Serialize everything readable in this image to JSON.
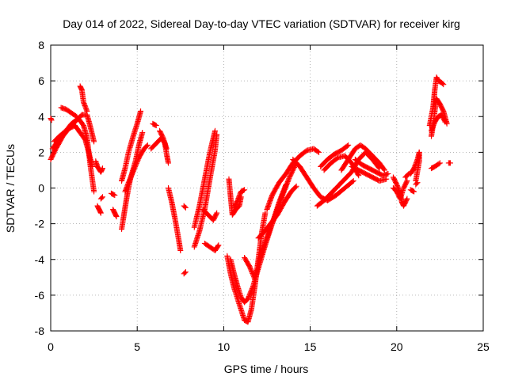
{
  "chart_data": {
    "type": "scatter",
    "title": "Day 014 of 2022, Sidereal Day-to-day VTEC variation (SDTVAR) for receiver kirg",
    "xlabel": "GPS time / hours",
    "ylabel": "SDTVAR / TECUs",
    "xlim": [
      0,
      25
    ],
    "ylim": [
      -8,
      8
    ],
    "xticks": [
      0,
      5,
      10,
      15,
      20,
      25
    ],
    "yticks": [
      -8,
      -6,
      -4,
      -2,
      0,
      2,
      4,
      6,
      8
    ],
    "grid": true,
    "marker": "plus",
    "color": "#ff0000",
    "series": [
      {
        "tracks": [
          [
            [
              0.0,
              3.9
            ],
            [
              0.05,
              3.8
            ]
          ],
          [
            [
              0.0,
              1.6
            ],
            [
              0.3,
              2.2
            ],
            [
              0.7,
              2.9
            ],
            [
              1.1,
              3.4
            ],
            [
              1.5,
              3.8
            ],
            [
              1.8,
              4.1
            ],
            [
              2.1,
              4.1
            ],
            [
              2.3,
              3.4
            ],
            [
              2.5,
              2.6
            ]
          ],
          [
            [
              0.1,
              2.2
            ],
            [
              0.4,
              2.6
            ],
            [
              0.8,
              3.1
            ],
            [
              1.2,
              3.6
            ],
            [
              1.6,
              3.9
            ],
            [
              1.9,
              3.5
            ],
            [
              2.1,
              2.8
            ],
            [
              2.3,
              1.2
            ],
            [
              2.5,
              -0.2
            ]
          ],
          [
            [
              0.2,
              2.6
            ],
            [
              0.5,
              2.9
            ],
            [
              1.0,
              3.3
            ],
            [
              1.4,
              3.5
            ],
            [
              1.7,
              3.1
            ],
            [
              2.0,
              2.7
            ],
            [
              2.2,
              2.0
            ],
            [
              2.4,
              1.2
            ]
          ],
          [
            [
              0.6,
              4.5
            ],
            [
              0.9,
              4.4
            ],
            [
              1.2,
              4.2
            ],
            [
              1.5,
              4.0
            ]
          ],
          [
            [
              1.7,
              5.7
            ],
            [
              1.8,
              5.5
            ],
            [
              1.9,
              4.8
            ],
            [
              2.1,
              4.3
            ]
          ],
          [
            [
              2.6,
              1.5
            ],
            [
              2.7,
              1.2
            ],
            [
              2.9,
              0.9
            ],
            [
              3.0,
              1.1
            ]
          ],
          [
            [
              2.7,
              -1.0
            ],
            [
              2.8,
              -1.2
            ],
            [
              2.9,
              -1.4
            ]
          ],
          [
            [
              2.9,
              -0.6
            ],
            [
              3.0,
              -0.5
            ]
          ],
          [
            [
              3.5,
              -0.3
            ],
            [
              3.7,
              -0.4
            ]
          ],
          [
            [
              3.6,
              -1.2
            ],
            [
              3.7,
              -1.4
            ],
            [
              3.8,
              -1.6
            ]
          ],
          [
            [
              4.1,
              0.4
            ],
            [
              4.3,
              1.1
            ],
            [
              4.5,
              2.0
            ],
            [
              4.8,
              3.0
            ],
            [
              5.0,
              3.6
            ],
            [
              5.2,
              4.3
            ]
          ],
          [
            [
              4.1,
              -2.3
            ],
            [
              4.2,
              -1.7
            ],
            [
              4.4,
              -0.5
            ],
            [
              4.6,
              0.5
            ],
            [
              4.9,
              1.5
            ],
            [
              5.1,
              2.4
            ],
            [
              5.3,
              3.1
            ]
          ],
          [
            [
              4.3,
              -0.2
            ],
            [
              4.5,
              0.3
            ],
            [
              4.8,
              1.0
            ],
            [
              5.1,
              1.7
            ],
            [
              5.4,
              2.2
            ],
            [
              5.6,
              2.4
            ]
          ],
          [
            [
              5.9,
              3.6
            ],
            [
              6.1,
              3.5
            ]
          ],
          [
            [
              5.8,
              2.2
            ],
            [
              6.1,
              2.5
            ],
            [
              6.4,
              2.8
            ],
            [
              6.6,
              2.5
            ],
            [
              6.7,
              1.9
            ],
            [
              6.8,
              1.4
            ]
          ],
          [
            [
              6.3,
              3.2
            ],
            [
              6.5,
              2.8
            ],
            [
              6.7,
              2.2
            ]
          ],
          [
            [
              6.8,
              0.0
            ],
            [
              7.0,
              -0.8
            ],
            [
              7.2,
              -1.8
            ],
            [
              7.4,
              -2.9
            ],
            [
              7.5,
              -3.5
            ]
          ],
          [
            [
              7.7,
              -1.0
            ],
            [
              7.8,
              -1.1
            ]
          ],
          [
            [
              7.7,
              -4.8
            ],
            [
              7.8,
              -4.7
            ]
          ],
          [
            [
              8.3,
              -2.2
            ],
            [
              8.6,
              -1.0
            ],
            [
              8.9,
              0.5
            ],
            [
              9.2,
              2.0
            ],
            [
              9.5,
              3.2
            ]
          ],
          [
            [
              8.3,
              -3.3
            ],
            [
              8.6,
              -2.4
            ],
            [
              8.9,
              -1.2
            ],
            [
              9.2,
              0.5
            ],
            [
              9.5,
              2.1
            ],
            [
              9.6,
              3.0
            ]
          ],
          [
            [
              8.9,
              -3.1
            ],
            [
              9.2,
              -3.3
            ],
            [
              9.5,
              -3.5
            ],
            [
              9.7,
              -3.2
            ]
          ],
          [
            [
              8.8,
              -1.2
            ],
            [
              9.1,
              -1.5
            ],
            [
              9.4,
              -1.8
            ],
            [
              9.6,
              -1.4
            ]
          ],
          [
            [
              10.3,
              0.5
            ],
            [
              10.4,
              -0.5
            ],
            [
              10.5,
              -1.5
            ],
            [
              10.7,
              -1.2
            ],
            [
              10.9,
              -1.0
            ],
            [
              11.0,
              -0.5
            ]
          ],
          [
            [
              10.6,
              -1.1
            ],
            [
              10.8,
              -0.7
            ],
            [
              11.0,
              -0.2
            ],
            [
              11.2,
              -0.1
            ]
          ],
          [
            [
              10.2,
              -3.8
            ],
            [
              10.4,
              -4.8
            ],
            [
              10.6,
              -5.6
            ],
            [
              10.8,
              -6.2
            ],
            [
              11.0,
              -6.8
            ],
            [
              11.2,
              -7.4
            ],
            [
              11.4,
              -7.5
            ],
            [
              11.6,
              -6.8
            ],
            [
              11.8,
              -5.5
            ],
            [
              12.0,
              -4.0
            ],
            [
              12.2,
              -2.5
            ],
            [
              12.4,
              -1.4
            ]
          ],
          [
            [
              10.4,
              -4.0
            ],
            [
              10.6,
              -4.8
            ],
            [
              10.8,
              -5.5
            ],
            [
              11.0,
              -6.1
            ],
            [
              11.2,
              -6.4
            ],
            [
              11.4,
              -6.2
            ],
            [
              11.7,
              -5.5
            ],
            [
              12.0,
              -4.5
            ],
            [
              12.4,
              -3.2
            ],
            [
              12.8,
              -2.0
            ],
            [
              13.2,
              -0.8
            ],
            [
              13.6,
              0.2
            ]
          ],
          [
            [
              11.2,
              -3.9
            ],
            [
              11.5,
              -4.4
            ],
            [
              11.8,
              -5.1
            ],
            [
              12.0,
              -4.2
            ],
            [
              12.3,
              -3.3
            ],
            [
              12.6,
              -2.5
            ],
            [
              13.0,
              -1.5
            ],
            [
              13.4,
              -0.4
            ],
            [
              13.8,
              0.6
            ],
            [
              14.2,
              1.4
            ]
          ],
          [
            [
              12.0,
              -2.8
            ],
            [
              12.3,
              -2.5
            ],
            [
              12.7,
              -2.0
            ],
            [
              13.1,
              -1.5
            ],
            [
              13.5,
              -0.8
            ],
            [
              13.9,
              -0.2
            ],
            [
              14.2,
              0.1
            ]
          ],
          [
            [
              12.5,
              -1.2
            ],
            [
              12.8,
              -0.4
            ],
            [
              13.2,
              0.3
            ],
            [
              13.6,
              0.8
            ],
            [
              14.0,
              1.4
            ],
            [
              14.4,
              1.8
            ],
            [
              14.8,
              2.1
            ],
            [
              15.2,
              2.2
            ],
            [
              15.5,
              2.0
            ]
          ],
          [
            [
              14.0,
              1.6
            ],
            [
              14.4,
              1.2
            ],
            [
              14.8,
              0.6
            ],
            [
              15.2,
              0.0
            ],
            [
              15.6,
              -0.5
            ],
            [
              16.0,
              -0.7
            ],
            [
              16.5,
              -0.4
            ],
            [
              17.0,
              0.0
            ],
            [
              17.5,
              0.4
            ]
          ],
          [
            [
              15.4,
              -1.0
            ],
            [
              15.8,
              -0.7
            ],
            [
              16.2,
              -0.3
            ],
            [
              16.6,
              0.1
            ],
            [
              17.0,
              0.5
            ],
            [
              17.4,
              0.9
            ],
            [
              17.8,
              1.6
            ],
            [
              18.2,
              2.0
            ],
            [
              18.6,
              1.6
            ],
            [
              19.0,
              1.1
            ]
          ],
          [
            [
              15.6,
              1.2
            ],
            [
              16.0,
              1.6
            ],
            [
              16.4,
              1.9
            ],
            [
              16.8,
              2.1
            ],
            [
              17.2,
              2.4
            ]
          ],
          [
            [
              15.8,
              1.0
            ],
            [
              16.2,
              1.4
            ],
            [
              16.6,
              1.7
            ],
            [
              17.0,
              1.8
            ],
            [
              17.4,
              1.4
            ],
            [
              17.8,
              0.7
            ]
          ],
          [
            [
              16.8,
              1.0
            ],
            [
              17.2,
              1.6
            ],
            [
              17.6,
              2.2
            ],
            [
              17.9,
              2.4
            ],
            [
              18.2,
              2.2
            ],
            [
              18.6,
              1.8
            ],
            [
              19.0,
              1.4
            ],
            [
              19.3,
              1.0
            ]
          ],
          [
            [
              17.4,
              1.2
            ],
            [
              17.8,
              1.0
            ],
            [
              18.2,
              0.8
            ],
            [
              18.6,
              0.6
            ],
            [
              19.0,
              0.4
            ],
            [
              19.4,
              0.5
            ]
          ],
          [
            [
              17.6,
              1.6
            ],
            [
              18.0,
              1.3
            ],
            [
              18.4,
              1.1
            ],
            [
              18.8,
              0.9
            ],
            [
              19.2,
              0.7
            ],
            [
              19.5,
              0.8
            ]
          ],
          [
            [
              19.8,
              0.6
            ],
            [
              20.0,
              0.2
            ],
            [
              20.2,
              -0.3
            ],
            [
              20.3,
              -0.8
            ],
            [
              20.4,
              -1.0
            ],
            [
              20.6,
              -0.6
            ]
          ],
          [
            [
              19.8,
              0.0
            ],
            [
              20.0,
              -0.2
            ],
            [
              20.2,
              -0.6
            ],
            [
              20.4,
              0.0
            ],
            [
              20.6,
              0.4
            ]
          ],
          [
            [
              20.5,
              0.6
            ],
            [
              20.7,
              0.8
            ]
          ],
          [
            [
              20.8,
              0.8
            ],
            [
              21.0,
              1.1
            ],
            [
              21.2,
              1.6
            ],
            [
              21.3,
              2.0
            ]
          ],
          [
            [
              21.1,
              0.4
            ],
            [
              21.3,
              1.5
            ],
            [
              21.3,
              2.0
            ]
          ],
          [
            [
              21.1,
              0.2
            ],
            [
              21.2,
              0.3
            ]
          ],
          [
            [
              20.8,
              -0.1
            ],
            [
              21.0,
              -0.2
            ]
          ],
          [
            [
              22.0,
              1.1
            ],
            [
              22.2,
              1.2
            ],
            [
              22.5,
              1.4
            ]
          ],
          [
            [
              21.9,
              3.5
            ],
            [
              22.1,
              4.5
            ],
            [
              22.2,
              5.5
            ],
            [
              22.3,
              6.2
            ],
            [
              22.4,
              6.0
            ],
            [
              22.6,
              5.9
            ],
            [
              22.7,
              5.8
            ]
          ],
          [
            [
              22.0,
              2.9
            ],
            [
              22.1,
              3.5
            ],
            [
              22.2,
              4.3
            ],
            [
              22.3,
              5.0
            ],
            [
              22.5,
              4.7
            ],
            [
              22.7,
              4.3
            ],
            [
              22.9,
              3.6
            ]
          ],
          [
            [
              22.0,
              3.2
            ],
            [
              22.2,
              3.7
            ],
            [
              22.4,
              4.0
            ],
            [
              22.6,
              4.1
            ],
            [
              22.8,
              3.7
            ]
          ],
          [
            [
              23.0,
              1.4
            ],
            [
              23.1,
              1.4
            ]
          ]
        ]
      }
    ]
  }
}
